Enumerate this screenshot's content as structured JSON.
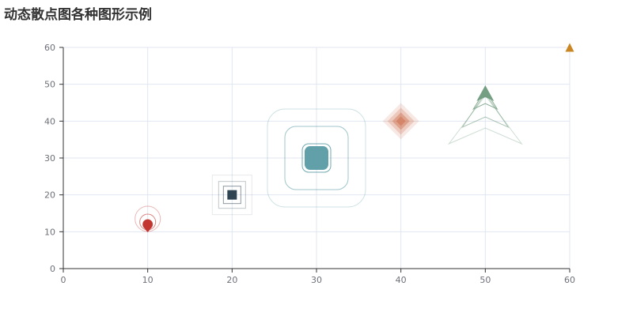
{
  "chart_data": {
    "type": "scatter",
    "title": "动态散点图各种图形示例",
    "xlabel": "",
    "ylabel": "",
    "xlim": [
      0,
      60
    ],
    "ylim": [
      0,
      60
    ],
    "x_ticks": [
      0,
      10,
      20,
      30,
      40,
      50,
      60
    ],
    "y_ticks": [
      0,
      10,
      20,
      30,
      40,
      50,
      60
    ],
    "grid": true,
    "points": [
      {
        "x": 10,
        "y": 12,
        "symbol": "pin",
        "color": "#c23531",
        "effect": "ripple"
      },
      {
        "x": 20,
        "y": 20,
        "symbol": "rect",
        "color": "#2f4554",
        "effect": "ripple"
      },
      {
        "x": 30,
        "y": 30,
        "symbol": "roundRect",
        "color": "#61a0a8",
        "effect": "ripple"
      },
      {
        "x": 40,
        "y": 40,
        "symbol": "diamond",
        "color": "#d48265",
        "effect": "ripple-fill"
      },
      {
        "x": 50,
        "y": 48,
        "symbol": "arrow",
        "color": "#749f83",
        "effect": "ripple"
      },
      {
        "x": 60,
        "y": 60,
        "symbol": "triangle",
        "color": "#ca8622",
        "effect": "none"
      }
    ]
  }
}
